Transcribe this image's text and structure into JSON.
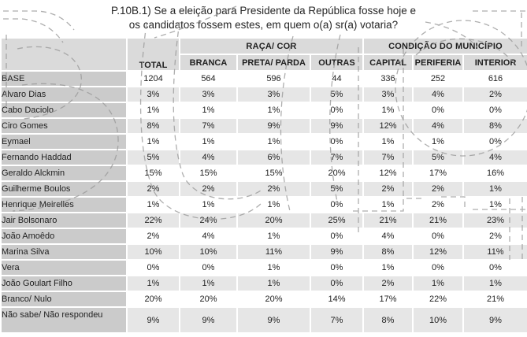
{
  "title": {
    "line1": "P.10B.1) Se a eleição para Presidente da República fosse hoje e",
    "line2": "os candidatos fossem estes, em quem o(a) sr(a) votaria?"
  },
  "table": {
    "header": {
      "total": "TOTAL",
      "groups": [
        {
          "label": "RAÇA/ COR",
          "columns": [
            "BRANCA",
            "PRETA/ PARDA",
            "OUTRAS"
          ]
        },
        {
          "label": "CONDIÇÃO DO MUNICÍPIO",
          "columns": [
            "CAPITAL",
            "PERIFERIA",
            "INTERIOR"
          ]
        }
      ]
    },
    "rows": [
      {
        "label": "BASE",
        "values": [
          "1204",
          "564",
          "596",
          "44",
          "336",
          "252",
          "616"
        ]
      },
      {
        "label": "Alvaro Dias",
        "values": [
          "3%",
          "3%",
          "3%",
          "5%",
          "3%",
          "4%",
          "2%"
        ]
      },
      {
        "label": "Cabo Daciolo",
        "values": [
          "1%",
          "1%",
          "1%",
          "0%",
          "1%",
          "0%",
          "0%"
        ]
      },
      {
        "label": "Ciro Gomes",
        "values": [
          "8%",
          "7%",
          "9%",
          "9%",
          "12%",
          "4%",
          "8%"
        ]
      },
      {
        "label": "Eymael",
        "values": [
          "1%",
          "1%",
          "1%",
          "0%",
          "1%",
          "1%",
          "0%"
        ]
      },
      {
        "label": "Fernando Haddad",
        "values": [
          "5%",
          "4%",
          "6%",
          "7%",
          "7%",
          "5%",
          "4%"
        ]
      },
      {
        "label": "Geraldo Alckmin",
        "values": [
          "15%",
          "15%",
          "15%",
          "20%",
          "12%",
          "17%",
          "16%"
        ]
      },
      {
        "label": "Guilherme Boulos",
        "values": [
          "2%",
          "2%",
          "2%",
          "5%",
          "2%",
          "2%",
          "1%"
        ]
      },
      {
        "label": "Henrique Meirelles",
        "values": [
          "1%",
          "1%",
          "1%",
          "0%",
          "1%",
          "2%",
          "1%"
        ]
      },
      {
        "label": "Jair Bolsonaro",
        "values": [
          "22%",
          "24%",
          "20%",
          "25%",
          "21%",
          "21%",
          "23%"
        ]
      },
      {
        "label": "João Amoêdo",
        "values": [
          "2%",
          "4%",
          "1%",
          "0%",
          "4%",
          "0%",
          "2%"
        ]
      },
      {
        "label": "Marina Silva",
        "values": [
          "10%",
          "10%",
          "11%",
          "9%",
          "8%",
          "12%",
          "11%"
        ]
      },
      {
        "label": "Vera",
        "values": [
          "0%",
          "0%",
          "1%",
          "0%",
          "1%",
          "0%",
          "0%"
        ]
      },
      {
        "label": "João Goulart Filho",
        "values": [
          "1%",
          "1%",
          "1%",
          "0%",
          "2%",
          "1%",
          "1%"
        ]
      },
      {
        "label": "Branco/ Nulo",
        "values": [
          "20%",
          "20%",
          "20%",
          "14%",
          "17%",
          "22%",
          "21%"
        ]
      },
      {
        "label": "Não sabe/ Não respondeu",
        "values": [
          "9%",
          "9%",
          "9%",
          "7%",
          "8%",
          "10%",
          "9%"
        ]
      }
    ]
  },
  "colors": {
    "header_bg": "#dadada",
    "label_bg": "#cbcbcb",
    "zebra_bg": "#e6e6e6",
    "cell_bg": "#ffffff",
    "text": "#1f1f1f",
    "watermark": "#9a9a9a"
  }
}
